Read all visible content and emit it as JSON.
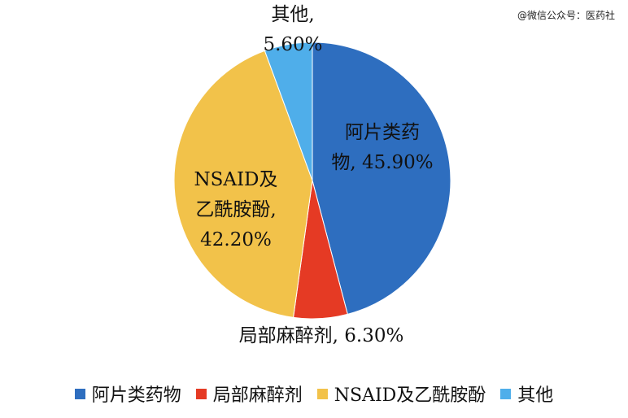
{
  "watermark": "@微信公众号：医药社",
  "chart_data": {
    "type": "pie",
    "slices": [
      {
        "name": "阿片类药物",
        "value": 45.9,
        "color": "#2E6EBF",
        "label_lines": [
          "阿片类药",
          "物, 45.90%"
        ]
      },
      {
        "name": "局部麻醉剂",
        "value": 6.3,
        "color": "#E53A24",
        "label_lines": [
          "局部麻醉剂, 6.30%"
        ]
      },
      {
        "name": "NSAID及乙酰胺酚",
        "value": 42.2,
        "color": "#F2C24A",
        "label_lines": [
          "NSAID及",
          "乙酰胺酚,",
          "42.20%"
        ]
      },
      {
        "name": "其他",
        "value": 5.6,
        "color": "#4FAEEA",
        "label_lines": [
          "其他,",
          "5.60%"
        ]
      }
    ],
    "start": "12 o'clock",
    "direction": "clockwise",
    "legend": "bottom"
  }
}
